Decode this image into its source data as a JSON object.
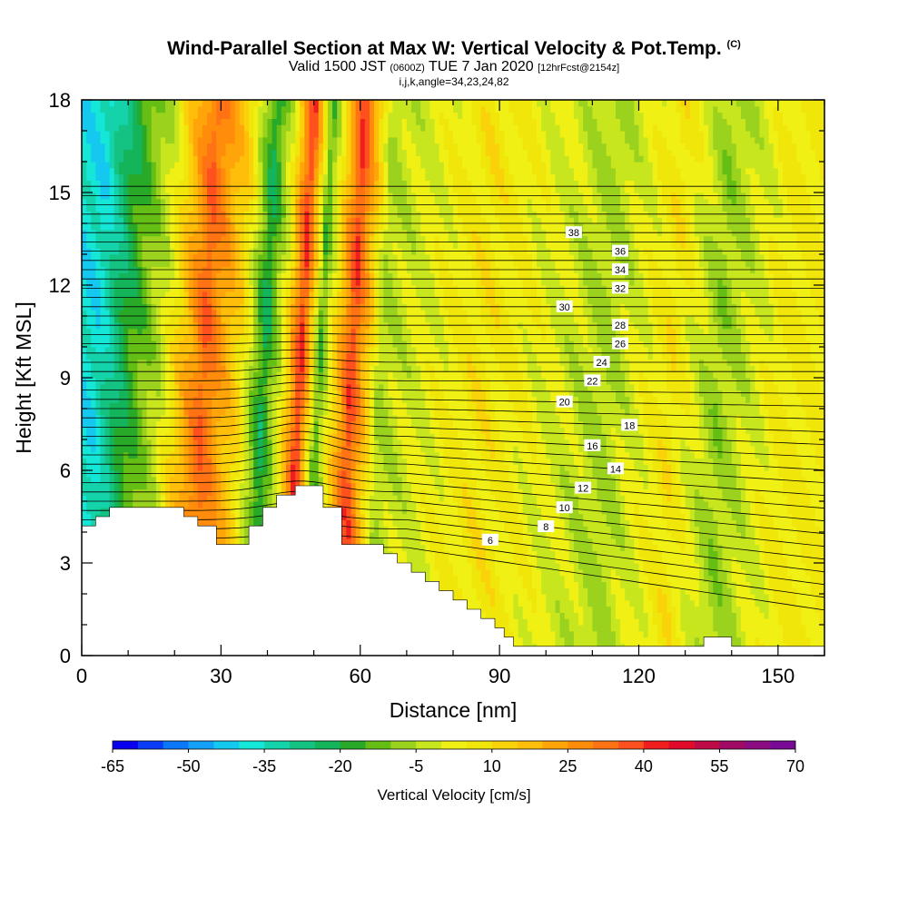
{
  "header": {
    "title": "Wind-Parallel Section at Max W: Vertical Velocity & Pot.Temp.",
    "title_mark": "(C)",
    "valid_main": "Valid 1500 JST",
    "valid_utc": "(0600Z)",
    "valid_date": "TUE 7 Jan 2020",
    "valid_fcst": "[12hrFcst@2154z]",
    "subtitle": "i,j,k,angle=34,23,24,82"
  },
  "chart_data": {
    "type": "heatmap",
    "title": "Wind-Parallel Section at Max W: Vertical Velocity & Pot.Temp.",
    "xlabel": "Distance [nm]",
    "ylabel": "Height [Kft MSL]",
    "xlim": [
      0,
      160
    ],
    "ylim": [
      0,
      18
    ],
    "x_ticks": [
      0,
      30,
      60,
      90,
      120,
      150
    ],
    "y_ticks": [
      0,
      3,
      6,
      9,
      12,
      15,
      18
    ],
    "x_tick_labels": [
      "0",
      "30",
      "60",
      "90",
      "120",
      "150"
    ],
    "y_tick_labels": [
      "0",
      "3",
      "6",
      "9",
      "12",
      "15",
      "18"
    ],
    "colorbar": {
      "label": "Vertical Velocity [cm/s]",
      "min": -65,
      "max": 70,
      "step": 5,
      "tick_labels": [
        "-65",
        "-50",
        "-35",
        "-20",
        "-5",
        "10",
        "25",
        "40",
        "55",
        "70"
      ],
      "colors": [
        "#0a00f0",
        "#0a3cf8",
        "#0a78f8",
        "#14a0f8",
        "#14c8f0",
        "#14e6d7",
        "#14d2aa",
        "#14c382",
        "#14b45a",
        "#28aa28",
        "#64be14",
        "#9bd21e",
        "#c8e61e",
        "#f0f014",
        "#f0e60a",
        "#fad20a",
        "#ffbe0a",
        "#ffa50a",
        "#ff8c0a",
        "#ff7314",
        "#ff501e",
        "#f01e1e",
        "#e10a28",
        "#be0a46",
        "#a00a64",
        "#8c0a82",
        "#780a96"
      ]
    },
    "theta_contour_labels": [
      "6",
      "8",
      "10",
      "12",
      "14",
      "16",
      "18",
      "20",
      "22",
      "24",
      "26",
      "28",
      "30",
      "32",
      "34",
      "36",
      "38"
    ],
    "vertical_velocity_columns": [
      {
        "x": 2,
        "w": -38
      },
      {
        "x": 8,
        "w": -20
      },
      {
        "x": 16,
        "w": -2
      },
      {
        "x": 25,
        "w": 35
      },
      {
        "x": 33,
        "w": 10
      },
      {
        "x": 38,
        "w": -22
      },
      {
        "x": 42,
        "w": 2
      },
      {
        "x": 46,
        "w": 42
      },
      {
        "x": 50,
        "w": -15
      },
      {
        "x": 57,
        "w": 40
      },
      {
        "x": 63,
        "w": -5
      },
      {
        "x": 85,
        "w": 8
      },
      {
        "x": 112,
        "w": -6
      },
      {
        "x": 126,
        "w": 8
      },
      {
        "x": 136,
        "w": -8
      },
      {
        "x": 150,
        "w": 6
      }
    ],
    "terrain": [
      {
        "x": 0,
        "h": 4.2
      },
      {
        "x": 3,
        "h": 4.5
      },
      {
        "x": 6,
        "h": 4.8
      },
      {
        "x": 22,
        "h": 4.5
      },
      {
        "x": 25,
        "h": 4.2
      },
      {
        "x": 29,
        "h": 3.6
      },
      {
        "x": 36,
        "h": 4.2
      },
      {
        "x": 39,
        "h": 4.8
      },
      {
        "x": 42,
        "h": 5.2
      },
      {
        "x": 46,
        "h": 5.5
      },
      {
        "x": 52,
        "h": 4.8
      },
      {
        "x": 56,
        "h": 3.6
      },
      {
        "x": 62,
        "h": 3.6
      },
      {
        "x": 65,
        "h": 3.3
      },
      {
        "x": 68,
        "h": 3.0
      },
      {
        "x": 71,
        "h": 2.7
      },
      {
        "x": 74,
        "h": 2.4
      },
      {
        "x": 77,
        "h": 2.1
      },
      {
        "x": 80,
        "h": 1.8
      },
      {
        "x": 83,
        "h": 1.5
      },
      {
        "x": 86,
        "h": 1.2
      },
      {
        "x": 89,
        "h": 0.9
      },
      {
        "x": 91,
        "h": 0.6
      },
      {
        "x": 93,
        "h": 0.3
      },
      {
        "x": 134,
        "h": 0.6
      },
      {
        "x": 140,
        "h": 0.3
      },
      {
        "x": 160,
        "h": 0.3
      }
    ]
  }
}
